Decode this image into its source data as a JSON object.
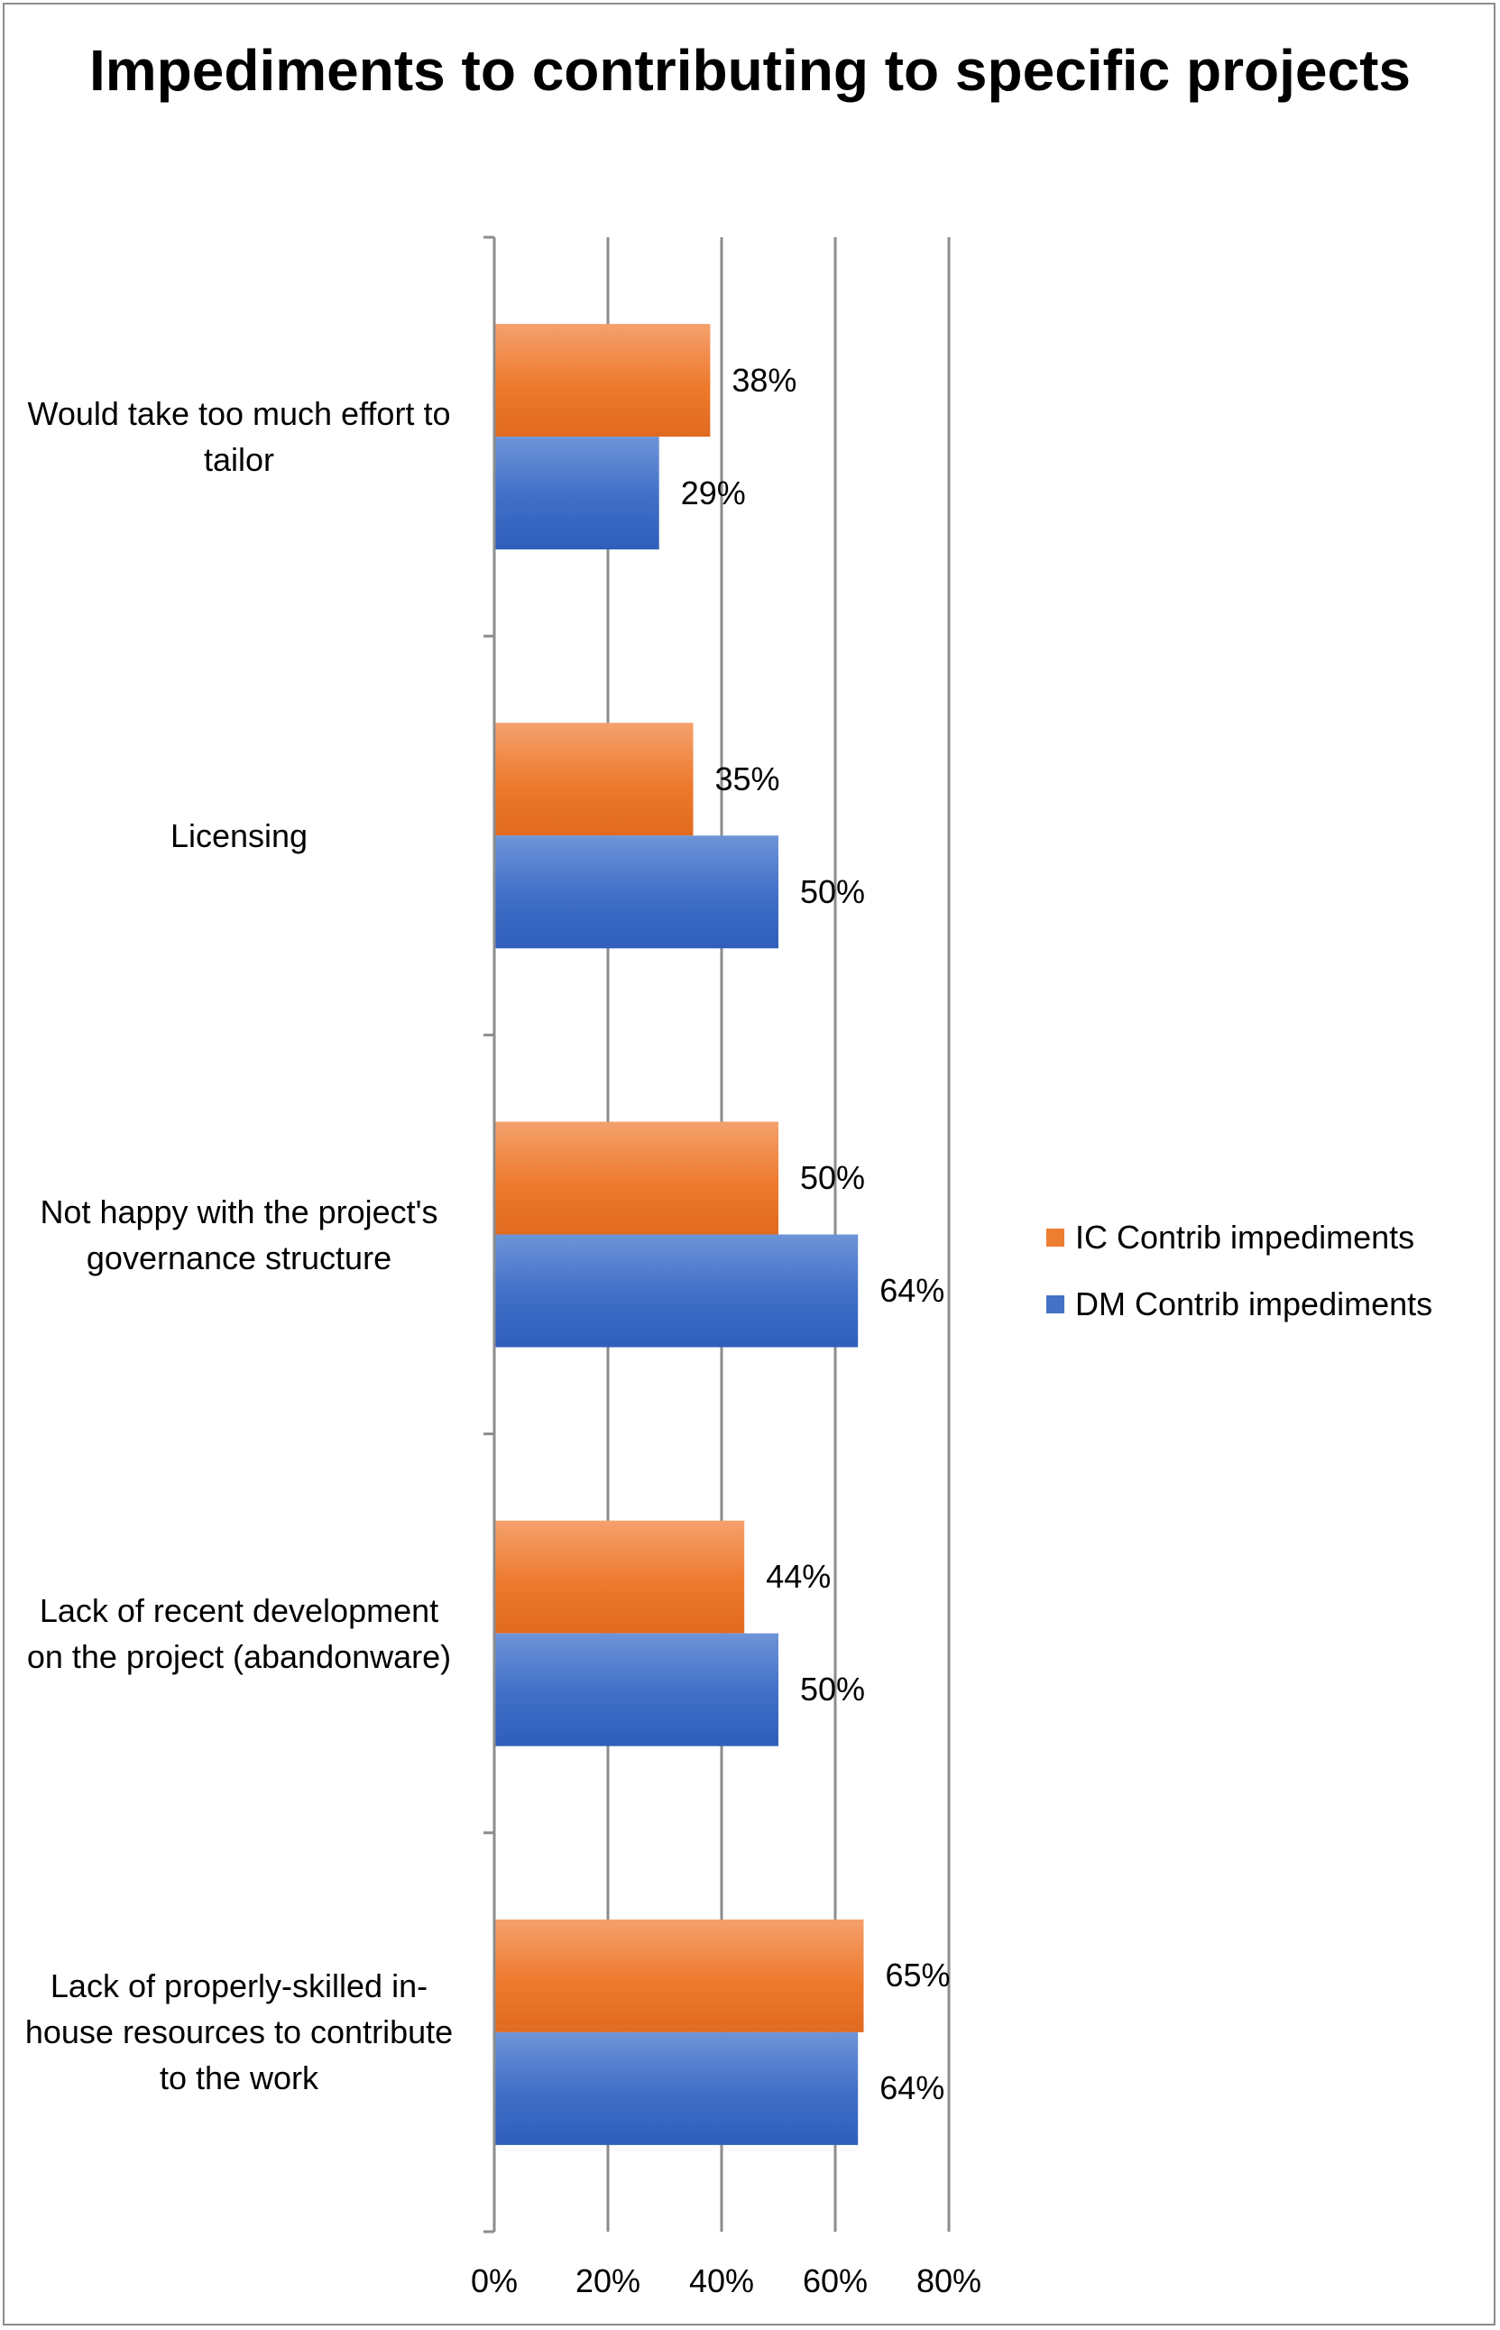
{
  "chart_data": {
    "type": "bar",
    "orientation": "horizontal",
    "title": "Impediments to contributing to specific projects",
    "categories": [
      "Would take too much effort to tailor",
      "Licensing",
      "Not happy with the project's governance structure",
      "Lack of recent development on the project (abandonware)",
      "Lack of properly-skilled in-house resources to contribute to the work"
    ],
    "series": [
      {
        "name": "IC Contrib impediments",
        "color": "#ED7D31",
        "values": [
          38,
          35,
          50,
          44,
          65
        ],
        "labels": [
          "38%",
          "35%",
          "50%",
          "44%",
          "65%"
        ]
      },
      {
        "name": "DM Contrib impediments",
        "color": "#4472C4",
        "values": [
          29,
          50,
          64,
          50,
          64
        ],
        "labels": [
          "29%",
          "50%",
          "64%",
          "50%",
          "64%"
        ]
      }
    ],
    "xlim": [
      0,
      80
    ],
    "xticks": [
      "0%",
      "20%",
      "40%",
      "60%",
      "80%"
    ],
    "xlabel": "",
    "ylabel": "",
    "grid": true,
    "legend_position": "right"
  }
}
